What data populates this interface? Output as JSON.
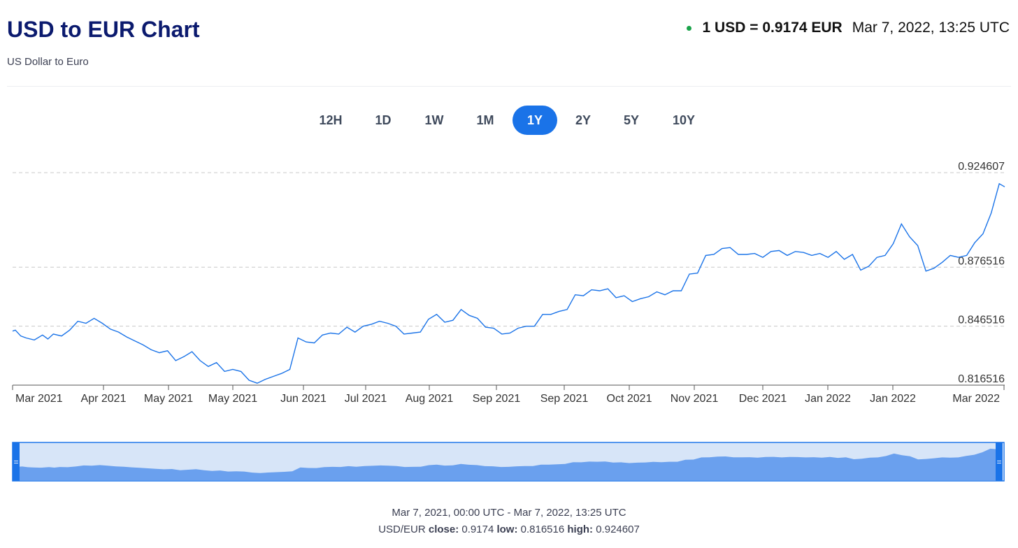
{
  "header": {
    "title": "USD to EUR Chart",
    "subtitle": "US Dollar to Euro",
    "rate_text": "1 USD = 0.9174 EUR",
    "timestamp": "Mar 7, 2022, 13:25 UTC",
    "status_color": "#1aa34a"
  },
  "ranges": [
    {
      "label": "12H",
      "active": false
    },
    {
      "label": "1D",
      "active": false
    },
    {
      "label": "1W",
      "active": false
    },
    {
      "label": "1M",
      "active": false
    },
    {
      "label": "1Y",
      "active": true
    },
    {
      "label": "2Y",
      "active": false
    },
    {
      "label": "5Y",
      "active": false
    },
    {
      "label": "10Y",
      "active": false
    }
  ],
  "footer": {
    "range_text": "Mar 7, 2021, 00:00 UTC - Mar 7, 2022, 13:25 UTC",
    "pair": "USD/EUR",
    "close_label": "close:",
    "close_value": "0.9174",
    "low_label": "low:",
    "low_value": "0.816516",
    "high_label": "high:",
    "high_value": "0.924607"
  },
  "colors": {
    "line": "#1a73e8",
    "navigator_fill": "#6aa0ee",
    "navigator_bg": "#d7e5f8",
    "navigator_border": "#1a73e8"
  },
  "chart_data": {
    "type": "line",
    "title": "USD to EUR Chart",
    "series": [],
    "x_labels": [
      "Mar 2021",
      "Apr 2021",
      "May 2021",
      "May 2021",
      "Jun 2021",
      "Jul 2021",
      "Aug 2021",
      "Sep 2021",
      "Sep 2021",
      "Oct 2021",
      "Nov 2021",
      "Dec 2021",
      "Jan 2022",
      "Jan 2022",
      "Mar 2022"
    ],
    "y_ticks": [
      "0.924607",
      "0.876516",
      "0.846516",
      "0.816516"
    ],
    "y_tick_values": [
      0.924607,
      0.876516,
      0.846516,
      0.816516
    ],
    "ylim": [
      0.816516,
      0.924607
    ],
    "xlim": [
      "2021-03-07",
      "2022-03-07"
    ],
    "grid": "horizontal dashed",
    "points": [
      [
        "2021-03-07",
        0.844
      ],
      [
        "2021-03-08",
        0.8445
      ],
      [
        "2021-03-10",
        0.8415
      ],
      [
        "2021-03-12",
        0.8405
      ],
      [
        "2021-03-15",
        0.8395
      ],
      [
        "2021-03-18",
        0.842
      ],
      [
        "2021-03-20",
        0.84
      ],
      [
        "2021-03-22",
        0.8425
      ],
      [
        "2021-03-25",
        0.8415
      ],
      [
        "2021-03-28",
        0.8445
      ],
      [
        "2021-03-31",
        0.849
      ],
      [
        "2021-04-03",
        0.848
      ],
      [
        "2021-04-06",
        0.8505
      ],
      [
        "2021-04-09",
        0.848
      ],
      [
        "2021-04-12",
        0.845
      ],
      [
        "2021-04-15",
        0.8435
      ],
      [
        "2021-04-18",
        0.841
      ],
      [
        "2021-04-21",
        0.839
      ],
      [
        "2021-04-24",
        0.837
      ],
      [
        "2021-04-27",
        0.8345
      ],
      [
        "2021-04-30",
        0.833
      ],
      [
        "2021-05-03",
        0.834
      ],
      [
        "2021-05-06",
        0.829
      ],
      [
        "2021-05-09",
        0.831
      ],
      [
        "2021-05-12",
        0.8335
      ],
      [
        "2021-05-15",
        0.829
      ],
      [
        "2021-05-18",
        0.826
      ],
      [
        "2021-05-21",
        0.828
      ],
      [
        "2021-05-24",
        0.8235
      ],
      [
        "2021-05-27",
        0.8245
      ],
      [
        "2021-05-30",
        0.8235
      ],
      [
        "2021-06-02",
        0.819
      ],
      [
        "2021-06-05",
        0.8175
      ],
      [
        "2021-06-08",
        0.8195
      ],
      [
        "2021-06-11",
        0.821
      ],
      [
        "2021-06-14",
        0.8225
      ],
      [
        "2021-06-17",
        0.8245
      ],
      [
        "2021-06-20",
        0.8405
      ],
      [
        "2021-06-23",
        0.8385
      ],
      [
        "2021-06-26",
        0.838
      ],
      [
        "2021-06-29",
        0.842
      ],
      [
        "2021-07-02",
        0.843
      ],
      [
        "2021-07-05",
        0.8425
      ],
      [
        "2021-07-08",
        0.846
      ],
      [
        "2021-07-11",
        0.8435
      ],
      [
        "2021-07-14",
        0.8465
      ],
      [
        "2021-07-17",
        0.8475
      ],
      [
        "2021-07-20",
        0.849
      ],
      [
        "2021-07-23",
        0.848
      ],
      [
        "2021-07-26",
        0.8465
      ],
      [
        "2021-07-29",
        0.8425
      ],
      [
        "2021-08-01",
        0.843
      ],
      [
        "2021-08-04",
        0.8435
      ],
      [
        "2021-08-07",
        0.85
      ],
      [
        "2021-08-10",
        0.8525
      ],
      [
        "2021-08-13",
        0.8485
      ],
      [
        "2021-08-16",
        0.8495
      ],
      [
        "2021-08-19",
        0.855
      ],
      [
        "2021-08-22",
        0.852
      ],
      [
        "2021-08-25",
        0.8505
      ],
      [
        "2021-08-28",
        0.846
      ],
      [
        "2021-08-31",
        0.8455
      ],
      [
        "2021-09-03",
        0.8425
      ],
      [
        "2021-09-06",
        0.843
      ],
      [
        "2021-09-09",
        0.8455
      ],
      [
        "2021-09-12",
        0.8465
      ],
      [
        "2021-09-15",
        0.8465
      ],
      [
        "2021-09-18",
        0.8525
      ],
      [
        "2021-09-21",
        0.8525
      ],
      [
        "2021-09-24",
        0.854
      ],
      [
        "2021-09-27",
        0.855
      ],
      [
        "2021-09-30",
        0.8625
      ],
      [
        "2021-10-03",
        0.862
      ],
      [
        "2021-10-06",
        0.865
      ],
      [
        "2021-10-09",
        0.8645
      ],
      [
        "2021-10-12",
        0.8655
      ],
      [
        "2021-10-15",
        0.861
      ],
      [
        "2021-10-18",
        0.862
      ],
      [
        "2021-10-21",
        0.859
      ],
      [
        "2021-10-24",
        0.8605
      ],
      [
        "2021-10-27",
        0.8615
      ],
      [
        "2021-10-30",
        0.864
      ],
      [
        "2021-11-02",
        0.8625
      ],
      [
        "2021-11-05",
        0.8645
      ],
      [
        "2021-11-08",
        0.8645
      ],
      [
        "2021-11-11",
        0.873
      ],
      [
        "2021-11-14",
        0.8735
      ],
      [
        "2021-11-17",
        0.8825
      ],
      [
        "2021-11-20",
        0.883
      ],
      [
        "2021-11-23",
        0.886
      ],
      [
        "2021-11-26",
        0.8865
      ],
      [
        "2021-11-29",
        0.883
      ],
      [
        "2021-12-02",
        0.883
      ],
      [
        "2021-12-05",
        0.8835
      ],
      [
        "2021-12-08",
        0.8815
      ],
      [
        "2021-12-11",
        0.8845
      ],
      [
        "2021-12-14",
        0.885
      ],
      [
        "2021-12-17",
        0.8825
      ],
      [
        "2021-12-20",
        0.8845
      ],
      [
        "2021-12-23",
        0.884
      ],
      [
        "2021-12-26",
        0.8825
      ],
      [
        "2021-12-29",
        0.8835
      ],
      [
        "2022-01-01",
        0.8815
      ],
      [
        "2022-01-04",
        0.8845
      ],
      [
        "2022-01-07",
        0.8805
      ],
      [
        "2022-01-10",
        0.883
      ],
      [
        "2022-01-13",
        0.875
      ],
      [
        "2022-01-16",
        0.877
      ],
      [
        "2022-01-19",
        0.8815
      ],
      [
        "2022-01-22",
        0.8825
      ],
      [
        "2022-01-25",
        0.8885
      ],
      [
        "2022-01-28",
        0.8985
      ],
      [
        "2022-01-31",
        0.892
      ],
      [
        "2022-02-03",
        0.8875
      ],
      [
        "2022-02-06",
        0.8745
      ],
      [
        "2022-02-09",
        0.876
      ],
      [
        "2022-02-12",
        0.879
      ],
      [
        "2022-02-15",
        0.8825
      ],
      [
        "2022-02-18",
        0.8815
      ],
      [
        "2022-02-21",
        0.8825
      ],
      [
        "2022-02-24",
        0.889
      ],
      [
        "2022-02-27",
        0.8935
      ],
      [
        "2022-03-02",
        0.904
      ],
      [
        "2022-03-05",
        0.919
      ],
      [
        "2022-03-07",
        0.9174
      ]
    ]
  }
}
